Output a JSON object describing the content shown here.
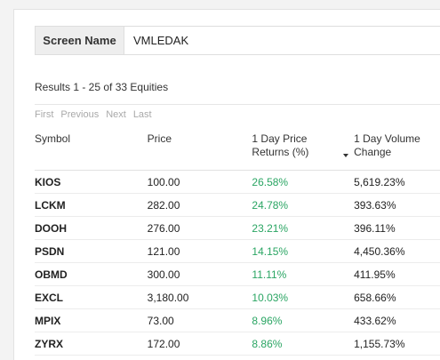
{
  "screen": {
    "label": "Screen Name",
    "value": "VMLEDAK"
  },
  "results_text": "Results 1 - 25 of 33 Equities",
  "pager": {
    "first": "First",
    "previous": "Previous",
    "next": "Next",
    "last": "Last"
  },
  "table": {
    "headers": {
      "symbol": "Symbol",
      "price": "Price",
      "return_line1": "1 Day Price",
      "return_line2": "Returns (%)",
      "volume_line1": "1 Day Volume",
      "volume_line2": "Change"
    },
    "rows": [
      {
        "symbol": "KIOS",
        "price": "100.00",
        "return": "26.58%",
        "volume": "5,619.23%"
      },
      {
        "symbol": "LCKM",
        "price": "282.00",
        "return": "24.78%",
        "volume": "393.63%"
      },
      {
        "symbol": "DOOH",
        "price": "276.00",
        "return": "23.21%",
        "volume": "396.11%"
      },
      {
        "symbol": "PSDN",
        "price": "121.00",
        "return": "14.15%",
        "volume": "4,450.36%"
      },
      {
        "symbol": "OBMD",
        "price": "300.00",
        "return": "11.11%",
        "volume": "411.95%"
      },
      {
        "symbol": "EXCL",
        "price": "3,180.00",
        "return": "10.03%",
        "volume": "658.66%"
      },
      {
        "symbol": "MPIX",
        "price": "73.00",
        "return": "8.96%",
        "volume": "433.62%"
      },
      {
        "symbol": "ZYRX",
        "price": "172.00",
        "return": "8.86%",
        "volume": "1,155.73%"
      }
    ]
  },
  "colors": {
    "positive": "#2aa563",
    "pager_disabled": "#a9a9a9"
  }
}
